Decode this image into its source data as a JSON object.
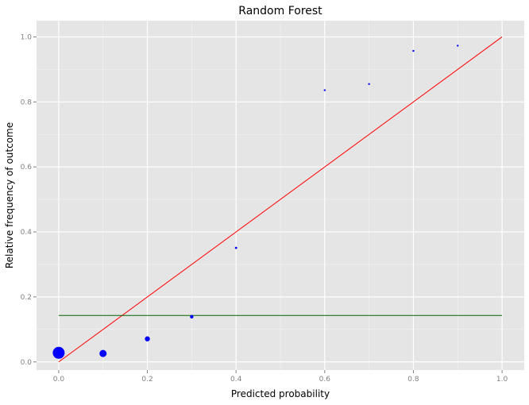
{
  "chart_data": {
    "type": "scatter",
    "title": "Random Forest",
    "xlabel": "Predicted probability",
    "ylabel": "Relative frequency of outcome",
    "xlim": [
      -0.05,
      1.05
    ],
    "ylim": [
      -0.025,
      1.05
    ],
    "x_ticks": [
      0.0,
      0.2,
      0.4,
      0.6,
      0.8,
      1.0
    ],
    "x_tick_labels": [
      "0.0",
      "0.2",
      "0.4",
      "0.6",
      "0.8",
      "1.0"
    ],
    "y_ticks": [
      0.0,
      0.2,
      0.4,
      0.6,
      0.8,
      1.0
    ],
    "y_tick_labels": [
      "0.0",
      "0.2",
      "0.4",
      "0.6",
      "0.8",
      "1.0"
    ],
    "grid": true,
    "legend": "none",
    "colors": {
      "background": "#e5e5e5",
      "grid": "#ffffff",
      "points": "#0000ff",
      "diagonal": "#ff0000",
      "baseline": "#006400"
    },
    "points": [
      {
        "x": 0.0,
        "y": 0.028,
        "size": 7.5
      },
      {
        "x": 0.1,
        "y": 0.026,
        "size": 4.5
      },
      {
        "x": 0.2,
        "y": 0.071,
        "size": 3.2
      },
      {
        "x": 0.3,
        "y": 0.139,
        "size": 2.2
      },
      {
        "x": 0.4,
        "y": 0.351,
        "size": 1.4
      },
      {
        "x": 0.6,
        "y": 0.836,
        "size": 1.2
      },
      {
        "x": 0.7,
        "y": 0.855,
        "size": 1.2
      },
      {
        "x": 0.8,
        "y": 0.957,
        "size": 1.2
      },
      {
        "x": 0.9,
        "y": 0.973,
        "size": 1.2
      }
    ],
    "reference_lines": [
      {
        "kind": "diagonal",
        "x": [
          0.0,
          1.0
        ],
        "y": [
          0.0,
          1.0
        ]
      },
      {
        "kind": "baseline",
        "x": [
          0.0,
          1.0
        ],
        "y": [
          0.143,
          0.143
        ]
      }
    ]
  }
}
